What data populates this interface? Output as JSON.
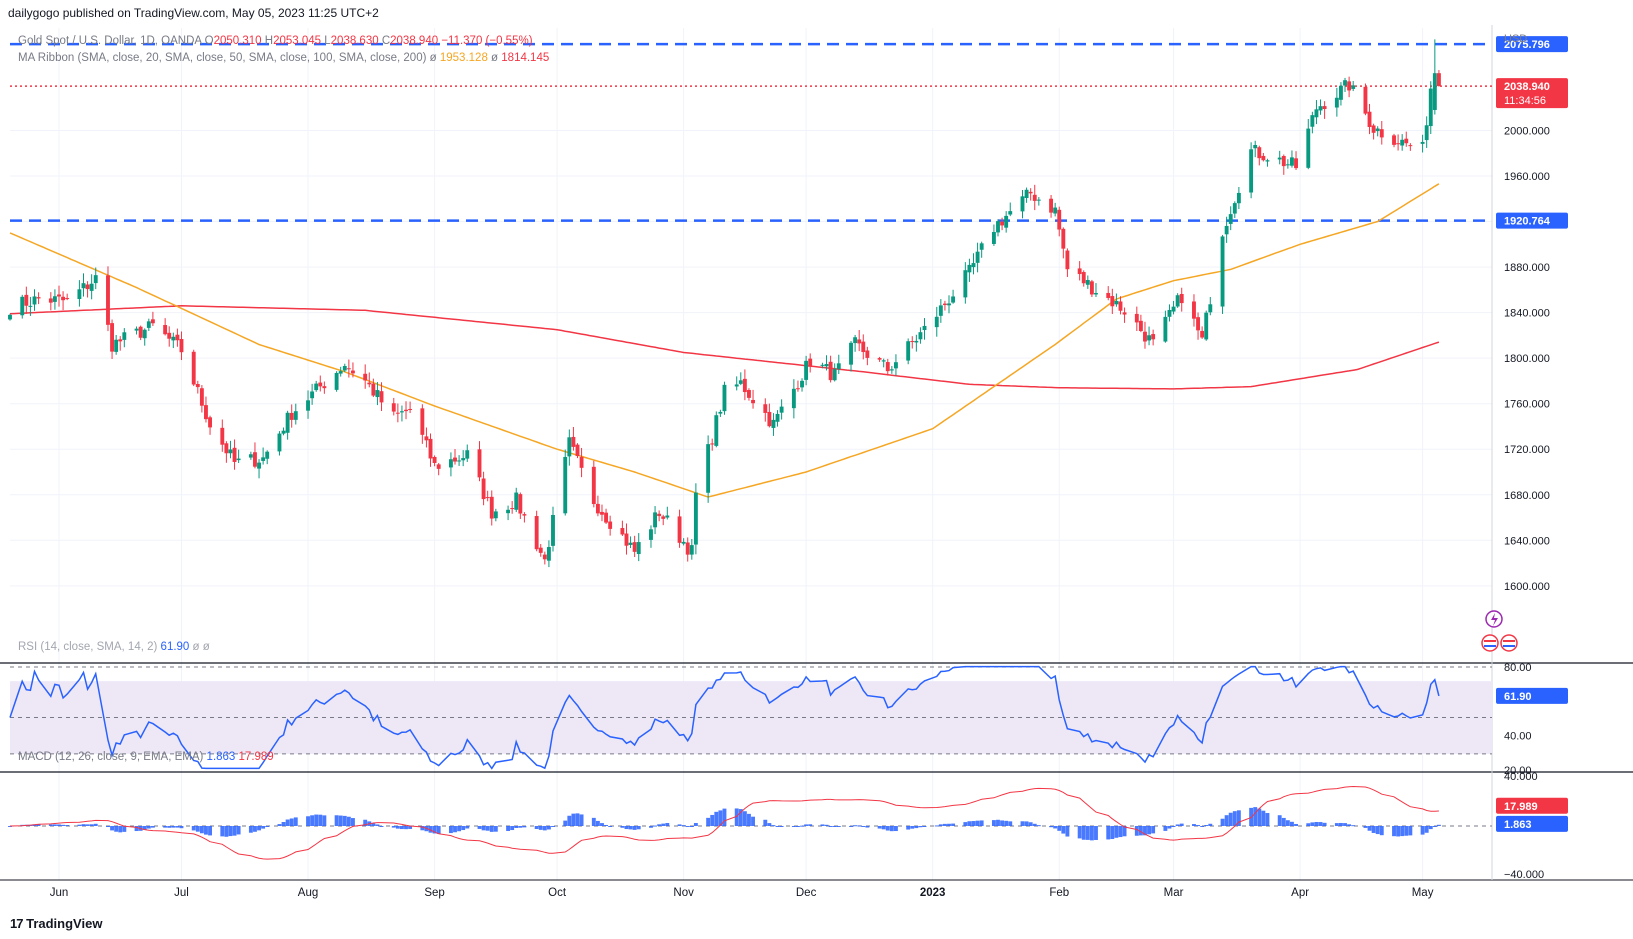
{
  "publisher_line": "dailygogo published on TradingView.com, May 05, 2023 11:25 UTC+2",
  "brand": "TradingView",
  "currency": "USD",
  "legend": {
    "symbol": "Gold Spot / U.S. Dollar, 1D, OANDA",
    "open_label": "O",
    "open": "2050.310",
    "high_label": "H",
    "high": "2053.045",
    "low_label": "L",
    "low": "2038.630",
    "close_label": "C",
    "close": "2038.940",
    "change": "−11.370 (−0.55%)",
    "ribbon": "MA Ribbon (SMA, close, 20, SMA, close, 50, SMA, close, 100, SMA, close, 200)",
    "ribbon_sep": "ø",
    "ma50_value": "1953.128",
    "ma200_value": "1814.145",
    "rsi": "RSI (14, close, SMA, 14, 2)",
    "rsi_value": "61.90",
    "rsi_extra": "ø ø",
    "macd": "MACD (12, 26, close, 9, EMA, EMA)",
    "macd_value": "1.863",
    "signal_value": "17.989"
  },
  "colors": {
    "up": "#089981",
    "down": "#f23645",
    "ma50": "#f5a623",
    "ma200": "#f23645",
    "level": "#2962ff",
    "rsi": "#2962ff",
    "rsi_band": "#ede7f6",
    "macd_hist": "#2962ff",
    "signal": "#f23645"
  },
  "chart_data": [
    {
      "type": "candlestick",
      "title": "Gold Spot / U.S. Dollar, 1D, OANDA",
      "ylim": [
        1570,
        2090
      ],
      "y_ticks": [
        "1600.000",
        "1640.000",
        "1680.000",
        "1720.000",
        "1760.000",
        "1800.000",
        "1840.000",
        "1880.000",
        "1920.000",
        "1960.000",
        "2000.000"
      ],
      "x_ticks": [
        "Jun",
        "Jul",
        "Aug",
        "Sep",
        "Oct",
        "Nov",
        "Dec",
        "2023",
        "Feb",
        "Mar",
        "Apr",
        "May"
      ],
      "levels": [
        {
          "label": "2075.796",
          "value": 2075.796
        },
        {
          "label": "1920.764",
          "value": 1920.764
        }
      ],
      "last_price": {
        "label": "2038.940",
        "value": 2038.94,
        "countdown": "11:34:56"
      },
      "price_path_anchors": [
        [
          "2022-05-20",
          1845
        ],
        [
          "2022-05-27",
          1852
        ],
        [
          "2022-06-03",
          1850
        ],
        [
          "2022-06-10",
          1870
        ],
        [
          "2022-06-14",
          1812
        ],
        [
          "2022-06-24",
          1828
        ],
        [
          "2022-07-01",
          1807
        ],
        [
          "2022-07-08",
          1742
        ],
        [
          "2022-07-14",
          1708
        ],
        [
          "2022-07-21",
          1712
        ],
        [
          "2022-07-28",
          1752
        ],
        [
          "2022-08-04",
          1775
        ],
        [
          "2022-08-10",
          1795
        ],
        [
          "2022-08-15",
          1780
        ],
        [
          "2022-08-22",
          1748
        ],
        [
          "2022-08-26",
          1755
        ],
        [
          "2022-09-01",
          1705
        ],
        [
          "2022-09-09",
          1715
        ],
        [
          "2022-09-15",
          1665
        ],
        [
          "2022-09-21",
          1675
        ],
        [
          "2022-09-28",
          1622
        ],
        [
          "2022-10-04",
          1725
        ],
        [
          "2022-10-10",
          1675
        ],
        [
          "2022-10-20",
          1630
        ],
        [
          "2022-10-26",
          1665
        ],
        [
          "2022-11-03",
          1630
        ],
        [
          "2022-11-04",
          1680
        ],
        [
          "2022-11-11",
          1770
        ],
        [
          "2022-11-15",
          1778
        ],
        [
          "2022-11-23",
          1742
        ],
        [
          "2022-12-02",
          1798
        ],
        [
          "2022-12-08",
          1785
        ],
        [
          "2022-12-13",
          1812
        ],
        [
          "2022-12-21",
          1790
        ],
        [
          "2022-12-30",
          1825
        ],
        [
          "2023-01-10",
          1875
        ],
        [
          "2023-01-16",
          1915
        ],
        [
          "2023-01-25",
          1945
        ],
        [
          "2023-01-31",
          1930
        ],
        [
          "2023-02-03",
          1878
        ],
        [
          "2023-02-10",
          1860
        ],
        [
          "2023-02-17",
          1842
        ],
        [
          "2023-02-24",
          1812
        ],
        [
          "2023-03-03",
          1855
        ],
        [
          "2023-03-08",
          1815
        ],
        [
          "2023-03-13",
          1912
        ],
        [
          "2023-03-20",
          1982
        ],
        [
          "2023-03-24",
          1978
        ],
        [
          "2023-03-31",
          1968
        ],
        [
          "2023-04-05",
          2020
        ],
        [
          "2023-04-13",
          2040
        ],
        [
          "2023-04-19",
          2002
        ],
        [
          "2023-04-27",
          1988
        ],
        [
          "2023-05-01",
          1983
        ],
        [
          "2023-05-03",
          2038
        ],
        [
          "2023-05-04",
          2050
        ],
        [
          "2023-05-05",
          2038.94
        ]
      ],
      "ma50_anchors": [
        [
          "2022-05-20",
          1910
        ],
        [
          "2022-06-20",
          1862
        ],
        [
          "2022-07-20",
          1812
        ],
        [
          "2022-08-10",
          1788
        ],
        [
          "2022-09-01",
          1758
        ],
        [
          "2022-10-01",
          1720
        ],
        [
          "2022-10-20",
          1700
        ],
        [
          "2022-11-07",
          1678
        ],
        [
          "2022-12-01",
          1700
        ],
        [
          "2023-01-01",
          1738
        ],
        [
          "2023-01-31",
          1812
        ],
        [
          "2023-02-15",
          1852
        ],
        [
          "2023-03-01",
          1868
        ],
        [
          "2023-03-15",
          1878
        ],
        [
          "2023-04-01",
          1900
        ],
        [
          "2023-04-20",
          1920
        ],
        [
          "2023-05-05",
          1953.128
        ]
      ],
      "ma200_anchors": [
        [
          "2022-05-20",
          1839
        ],
        [
          "2022-07-01",
          1846
        ],
        [
          "2022-08-15",
          1842
        ],
        [
          "2022-10-01",
          1825
        ],
        [
          "2022-11-01",
          1805
        ],
        [
          "2022-12-15",
          1788
        ],
        [
          "2023-01-10",
          1777
        ],
        [
          "2023-02-01",
          1774
        ],
        [
          "2023-03-01",
          1773
        ],
        [
          "2023-03-20",
          1775
        ],
        [
          "2023-04-15",
          1790
        ],
        [
          "2023-05-05",
          1814.145
        ]
      ]
    },
    {
      "type": "line",
      "title": "RSI (14, close, SMA, 14, 2)",
      "ylim": [
        20,
        80
      ],
      "y_ticks": [
        "80.00",
        "40.00",
        "20.00"
      ],
      "last_value": "61.90",
      "series": [
        {
          "name": "RSI",
          "values_note_from_price": true
        }
      ]
    },
    {
      "type": "bar",
      "title": "MACD (12, 26, close, 9, EMA, EMA)",
      "y_ticks": [
        "40.000",
        "−40.000"
      ],
      "macd_last": "1.863",
      "signal_last": "17.989"
    }
  ]
}
